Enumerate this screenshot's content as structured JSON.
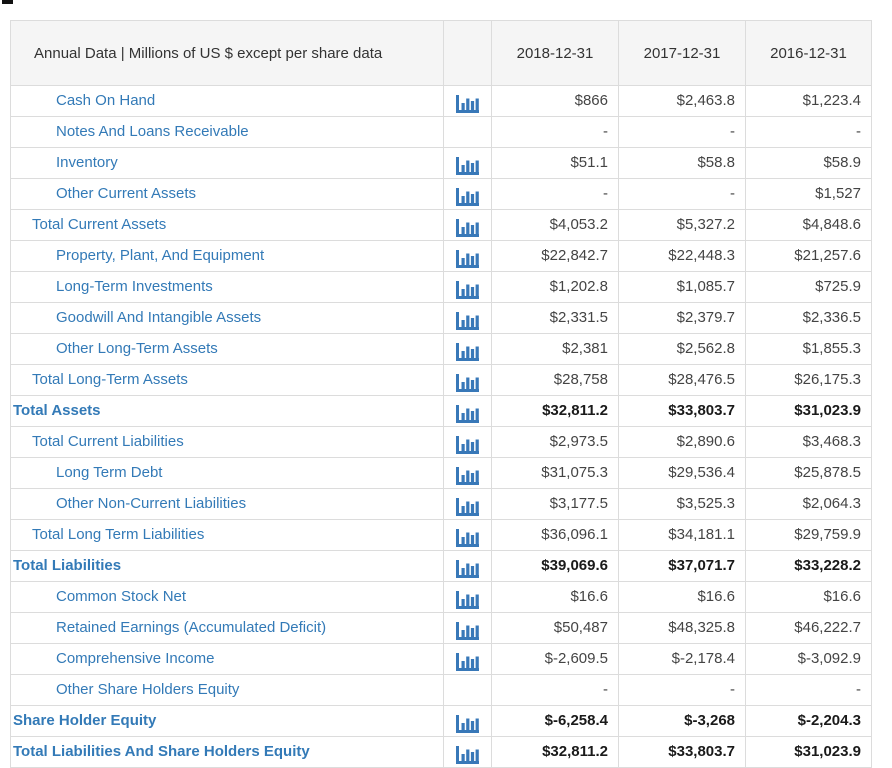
{
  "header": {
    "title": "Annual Data | Millions of US $ except per share data",
    "columns": [
      "2018-12-31",
      "2017-12-31",
      "2016-12-31"
    ]
  },
  "colors": {
    "link_blue": "#337ab7",
    "icon_blue": "#3878b8",
    "header_bg": "#f5f5f5",
    "border": "#dcdcdc",
    "value_text": "#444444"
  },
  "icons": {
    "row_icon": "bar-chart-icon"
  },
  "rows": [
    {
      "label": "Cash On Hand",
      "indent": 2,
      "bold": false,
      "icon": true,
      "values": [
        "$866",
        "$2,463.8",
        "$1,223.4"
      ]
    },
    {
      "label": "Notes And Loans Receivable",
      "indent": 2,
      "bold": false,
      "icon": false,
      "values": [
        "-",
        "-",
        "-"
      ]
    },
    {
      "label": "Inventory",
      "indent": 2,
      "bold": false,
      "icon": true,
      "values": [
        "$51.1",
        "$58.8",
        "$58.9"
      ]
    },
    {
      "label": "Other Current Assets",
      "indent": 2,
      "bold": false,
      "icon": true,
      "values": [
        "-",
        "-",
        "$1,527"
      ]
    },
    {
      "label": "Total Current Assets",
      "indent": 1,
      "bold": false,
      "icon": true,
      "values": [
        "$4,053.2",
        "$5,327.2",
        "$4,848.6"
      ]
    },
    {
      "label": "Property, Plant, And Equipment",
      "indent": 2,
      "bold": false,
      "icon": true,
      "values": [
        "$22,842.7",
        "$22,448.3",
        "$21,257.6"
      ]
    },
    {
      "label": "Long-Term Investments",
      "indent": 2,
      "bold": false,
      "icon": true,
      "values": [
        "$1,202.8",
        "$1,085.7",
        "$725.9"
      ]
    },
    {
      "label": "Goodwill And Intangible Assets",
      "indent": 2,
      "bold": false,
      "icon": true,
      "values": [
        "$2,331.5",
        "$2,379.7",
        "$2,336.5"
      ]
    },
    {
      "label": "Other Long-Term Assets",
      "indent": 2,
      "bold": false,
      "icon": true,
      "values": [
        "$2,381",
        "$2,562.8",
        "$1,855.3"
      ]
    },
    {
      "label": "Total Long-Term Assets",
      "indent": 1,
      "bold": false,
      "icon": true,
      "values": [
        "$28,758",
        "$28,476.5",
        "$26,175.3"
      ]
    },
    {
      "label": "Total Assets",
      "indent": 0,
      "bold": true,
      "icon": true,
      "values": [
        "$32,811.2",
        "$33,803.7",
        "$31,023.9"
      ]
    },
    {
      "label": "Total Current Liabilities",
      "indent": 1,
      "bold": false,
      "icon": true,
      "values": [
        "$2,973.5",
        "$2,890.6",
        "$3,468.3"
      ]
    },
    {
      "label": "Long Term Debt",
      "indent": 2,
      "bold": false,
      "icon": true,
      "values": [
        "$31,075.3",
        "$29,536.4",
        "$25,878.5"
      ]
    },
    {
      "label": "Other Non-Current Liabilities",
      "indent": 2,
      "bold": false,
      "icon": true,
      "values": [
        "$3,177.5",
        "$3,525.3",
        "$2,064.3"
      ]
    },
    {
      "label": "Total Long Term Liabilities",
      "indent": 1,
      "bold": false,
      "icon": true,
      "values": [
        "$36,096.1",
        "$34,181.1",
        "$29,759.9"
      ]
    },
    {
      "label": "Total Liabilities",
      "indent": 0,
      "bold": true,
      "icon": true,
      "values": [
        "$39,069.6",
        "$37,071.7",
        "$33,228.2"
      ]
    },
    {
      "label": "Common Stock Net",
      "indent": 2,
      "bold": false,
      "icon": true,
      "values": [
        "$16.6",
        "$16.6",
        "$16.6"
      ]
    },
    {
      "label": "Retained Earnings (Accumulated Deficit)",
      "indent": 2,
      "bold": false,
      "icon": true,
      "values": [
        "$50,487",
        "$48,325.8",
        "$46,222.7"
      ]
    },
    {
      "label": "Comprehensive Income",
      "indent": 2,
      "bold": false,
      "icon": true,
      "values": [
        "$-2,609.5",
        "$-2,178.4",
        "$-3,092.9"
      ]
    },
    {
      "label": "Other Share Holders Equity",
      "indent": 2,
      "bold": false,
      "icon": false,
      "values": [
        "-",
        "-",
        "-"
      ]
    },
    {
      "label": "Share Holder Equity",
      "indent": 0,
      "bold": true,
      "icon": true,
      "values": [
        "$-6,258.4",
        "$-3,268",
        "$-2,204.3"
      ]
    },
    {
      "label": "Total Liabilities And Share Holders Equity",
      "indent": 0,
      "bold": true,
      "icon": true,
      "values": [
        "$32,811.2",
        "$33,803.7",
        "$31,023.9"
      ]
    }
  ]
}
